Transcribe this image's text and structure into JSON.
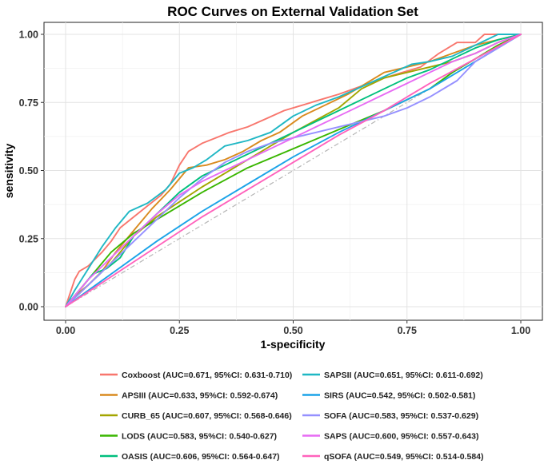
{
  "chart_data": {
    "type": "line",
    "title": "ROC Curves on External Validation Set",
    "xlabel": "1-specificity",
    "ylabel": "sensitivity",
    "xlim": [
      0,
      1
    ],
    "ylim": [
      0,
      1
    ],
    "x_ticks": [
      "0.00",
      "0.25",
      "0.50",
      "0.75",
      "1.00"
    ],
    "y_ticks": [
      "0.00",
      "0.25",
      "0.50",
      "0.75",
      "1.00"
    ],
    "grid": true,
    "legend_position": "bottom",
    "reference_line": {
      "from": [
        0,
        0
      ],
      "to": [
        1,
        1
      ],
      "style": "dashdot",
      "color": "#b5b5b5"
    },
    "series": [
      {
        "name": "Coxboost (AUC=0.671, 95%CI: 0.631-0.710)",
        "color": "#F8766D",
        "x": [
          0,
          0.01,
          0.02,
          0.03,
          0.05,
          0.08,
          0.1,
          0.12,
          0.15,
          0.18,
          0.21,
          0.23,
          0.25,
          0.27,
          0.3,
          0.33,
          0.36,
          0.4,
          0.44,
          0.48,
          0.52,
          0.56,
          0.6,
          0.65,
          0.7,
          0.74,
          0.78,
          0.82,
          0.86,
          0.9,
          0.92,
          0.95,
          0.97,
          1
        ],
        "y": [
          0,
          0.05,
          0.1,
          0.13,
          0.15,
          0.2,
          0.24,
          0.29,
          0.33,
          0.37,
          0.41,
          0.45,
          0.52,
          0.57,
          0.6,
          0.62,
          0.64,
          0.66,
          0.69,
          0.72,
          0.74,
          0.76,
          0.78,
          0.81,
          0.84,
          0.86,
          0.88,
          0.93,
          0.97,
          0.97,
          1,
          1,
          1,
          1
        ]
      },
      {
        "name": "APSIII (AUC=0.633, 95%CI: 0.592-0.674)",
        "color": "#D98A1E",
        "x": [
          0,
          0.02,
          0.05,
          0.08,
          0.11,
          0.15,
          0.19,
          0.23,
          0.27,
          0.31,
          0.35,
          0.39,
          0.43,
          0.47,
          0.52,
          0.57,
          0.62,
          0.66,
          0.7,
          0.75,
          0.8,
          0.85,
          0.9,
          0.95,
          1
        ],
        "y": [
          0,
          0.04,
          0.08,
          0.13,
          0.2,
          0.28,
          0.36,
          0.43,
          0.51,
          0.52,
          0.54,
          0.57,
          0.61,
          0.64,
          0.7,
          0.74,
          0.78,
          0.82,
          0.86,
          0.88,
          0.9,
          0.93,
          0.96,
          0.98,
          1
        ]
      },
      {
        "name": "CURB_65 (AUC=0.607, 95%CI: 0.568-0.646)",
        "color": "#A3A500",
        "x": [
          0,
          0.05,
          0.1,
          0.15,
          0.2,
          0.3,
          0.4,
          0.5,
          0.6,
          0.65,
          0.7,
          0.75,
          0.8,
          0.85,
          0.9,
          0.95,
          1
        ],
        "y": [
          0,
          0.08,
          0.16,
          0.26,
          0.33,
          0.44,
          0.54,
          0.64,
          0.73,
          0.8,
          0.84,
          0.86,
          0.88,
          0.9,
          0.93,
          0.97,
          1
        ]
      },
      {
        "name": "LODS (AUC=0.583, 95%CI: 0.540-0.627)",
        "color": "#39B600",
        "x": [
          0,
          0.05,
          0.1,
          0.15,
          0.2,
          0.3,
          0.4,
          0.5,
          0.6,
          0.7,
          0.8,
          0.85,
          0.9,
          0.95,
          1
        ],
        "y": [
          0,
          0.1,
          0.2,
          0.27,
          0.32,
          0.42,
          0.51,
          0.58,
          0.65,
          0.72,
          0.8,
          0.86,
          0.91,
          0.96,
          1
        ]
      },
      {
        "name": "OASIS (AUC=0.606, 95%CI: 0.564-0.647)",
        "color": "#00BF7D",
        "x": [
          0,
          0.03,
          0.06,
          0.09,
          0.12,
          0.15,
          0.2,
          0.25,
          0.3,
          0.35,
          0.4,
          0.45,
          0.5,
          0.55,
          0.6,
          0.65,
          0.7,
          0.75,
          0.8,
          0.85,
          0.9,
          0.95,
          1
        ],
        "y": [
          0,
          0.06,
          0.12,
          0.14,
          0.18,
          0.26,
          0.34,
          0.42,
          0.48,
          0.52,
          0.56,
          0.6,
          0.64,
          0.68,
          0.72,
          0.76,
          0.8,
          0.84,
          0.87,
          0.91,
          0.95,
          0.98,
          1
        ]
      },
      {
        "name": "SAPSII (AUC=0.651, 95%CI: 0.611-0.692)",
        "color": "#1FB7C4",
        "x": [
          0,
          0.02,
          0.05,
          0.08,
          0.11,
          0.14,
          0.18,
          0.22,
          0.25,
          0.28,
          0.31,
          0.35,
          0.4,
          0.45,
          0.5,
          0.55,
          0.6,
          0.64,
          0.68,
          0.72,
          0.76,
          0.8,
          0.85,
          0.9,
          0.95,
          1
        ],
        "y": [
          0,
          0.06,
          0.14,
          0.22,
          0.29,
          0.35,
          0.38,
          0.43,
          0.49,
          0.51,
          0.54,
          0.59,
          0.61,
          0.64,
          0.7,
          0.74,
          0.77,
          0.8,
          0.83,
          0.86,
          0.89,
          0.9,
          0.92,
          0.96,
          1,
          1
        ]
      },
      {
        "name": "SIRS (AUC=0.542, 95%CI: 0.502-0.581)",
        "color": "#1BA3E8",
        "x": [
          0,
          0.1,
          0.2,
          0.3,
          0.4,
          0.5,
          0.6,
          0.7,
          0.8,
          0.9,
          1
        ],
        "y": [
          0,
          0.12,
          0.24,
          0.35,
          0.45,
          0.55,
          0.64,
          0.72,
          0.8,
          0.9,
          1
        ]
      },
      {
        "name": "SOFA (AUC=0.583, 95%CI: 0.537-0.629)",
        "color": "#9590FF",
        "x": [
          0,
          0.05,
          0.1,
          0.15,
          0.2,
          0.25,
          0.3,
          0.35,
          0.4,
          0.45,
          0.5,
          0.55,
          0.6,
          0.65,
          0.7,
          0.75,
          0.8,
          0.86,
          0.9,
          0.93,
          0.96,
          1
        ],
        "y": [
          0,
          0.08,
          0.16,
          0.24,
          0.32,
          0.4,
          0.47,
          0.53,
          0.57,
          0.6,
          0.62,
          0.64,
          0.66,
          0.68,
          0.7,
          0.73,
          0.77,
          0.83,
          0.9,
          0.93,
          0.96,
          1
        ]
      },
      {
        "name": "SAPS (AUC=0.600, 95%CI: 0.557-0.643)",
        "color": "#E76BF3",
        "x": [
          0,
          0.05,
          0.1,
          0.15,
          0.2,
          0.25,
          0.3,
          0.35,
          0.4,
          0.45,
          0.5,
          0.55,
          0.6,
          0.65,
          0.7,
          0.75,
          0.8,
          0.85,
          0.9,
          0.95,
          1
        ],
        "y": [
          0,
          0.1,
          0.18,
          0.26,
          0.34,
          0.41,
          0.46,
          0.5,
          0.54,
          0.58,
          0.62,
          0.66,
          0.7,
          0.74,
          0.78,
          0.82,
          0.86,
          0.9,
          0.93,
          0.97,
          1
        ]
      },
      {
        "name": "qSOFA (AUC=0.549, 95%CI: 0.514-0.584)",
        "color": "#FF62BC",
        "x": [
          0,
          0.1,
          0.2,
          0.3,
          0.4,
          0.5,
          0.6,
          0.7,
          0.8,
          0.9,
          1
        ],
        "y": [
          0,
          0.11,
          0.22,
          0.33,
          0.43,
          0.53,
          0.63,
          0.72,
          0.82,
          0.91,
          1
        ]
      }
    ]
  }
}
